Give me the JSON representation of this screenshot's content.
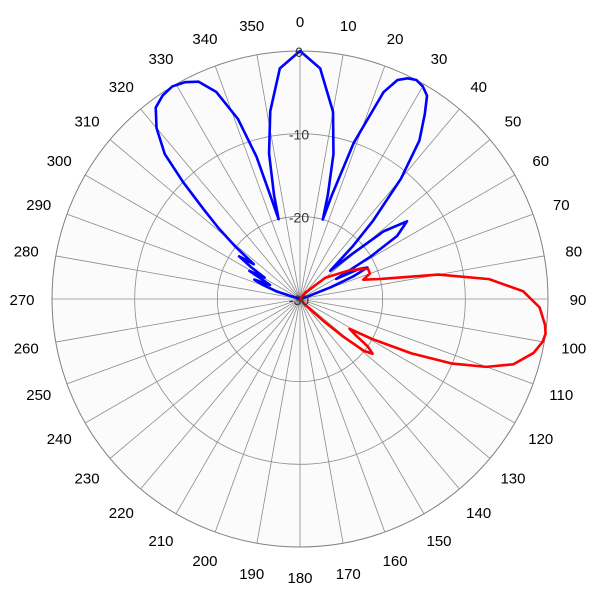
{
  "chart_data": {
    "type": "polar-line",
    "title": "",
    "angle_ticks": [
      "0",
      "10",
      "20",
      "30",
      "40",
      "50",
      "60",
      "70",
      "80",
      "90",
      "100",
      "110",
      "120",
      "130",
      "140",
      "150",
      "160",
      "170",
      "180",
      "190",
      "200",
      "210",
      "220",
      "230",
      "240",
      "250",
      "260",
      "270",
      "280",
      "290",
      "300",
      "310",
      "320",
      "330",
      "340",
      "350"
    ],
    "radial_ticks": [
      "0",
      "-10",
      "-20",
      "-30"
    ],
    "radial_range": [
      -30,
      0
    ],
    "angle_direction": "clockwise",
    "zero_angle": "top",
    "grid": true,
    "legend": "none",
    "series": [
      {
        "color": "#0000ff",
        "points": [
          [
            0,
            0
          ],
          [
            5,
            -2
          ],
          [
            10,
            -7
          ],
          [
            13,
            -12
          ],
          [
            15,
            -17
          ],
          [
            16,
            -20
          ],
          [
            17,
            -17
          ],
          [
            19,
            -10
          ],
          [
            22,
            -3
          ],
          [
            24,
            -1
          ],
          [
            26,
            -0.3
          ],
          [
            28,
            0
          ],
          [
            30,
            -0.3
          ],
          [
            32,
            -1
          ],
          [
            34,
            -3
          ],
          [
            37,
            -6
          ],
          [
            40,
            -11
          ],
          [
            43,
            -17
          ],
          [
            45,
            -21
          ],
          [
            47,
            -25
          ],
          [
            49,
            -22
          ],
          [
            51,
            -17
          ],
          [
            54,
            -14
          ],
          [
            57,
            -16
          ],
          [
            59,
            -20
          ],
          [
            61,
            -25
          ],
          [
            63,
            -22
          ],
          [
            65,
            -21
          ],
          [
            67,
            -23
          ],
          [
            69,
            -26
          ],
          [
            72,
            -29
          ],
          [
            76,
            -30
          ],
          [
            284,
            -30
          ],
          [
            288,
            -27
          ],
          [
            291,
            -25
          ],
          [
            293,
            -24
          ],
          [
            295,
            -26
          ],
          [
            297,
            -25
          ],
          [
            299,
            -23
          ],
          [
            301,
            -25
          ],
          [
            303,
            -23
          ],
          [
            305,
            -21
          ],
          [
            307,
            -23
          ],
          [
            309,
            -20
          ],
          [
            311,
            -17
          ],
          [
            313,
            -14
          ],
          [
            315,
            -10
          ],
          [
            317,
            -6
          ],
          [
            320,
            -3
          ],
          [
            323,
            -1
          ],
          [
            326,
            -0.3
          ],
          [
            329,
            0
          ],
          [
            332,
            -0.3
          ],
          [
            335,
            -1
          ],
          [
            338,
            -3
          ],
          [
            341,
            -7
          ],
          [
            343,
            -12
          ],
          [
            344,
            -17
          ],
          [
            345,
            -20
          ],
          [
            346,
            -17
          ],
          [
            348,
            -12
          ],
          [
            351,
            -7
          ],
          [
            355,
            -2
          ],
          [
            360,
            0
          ]
        ]
      },
      {
        "color": "#ff0000",
        "points": [
          [
            28,
            -30
          ],
          [
            40,
            -29
          ],
          [
            50,
            -26
          ],
          [
            60,
            -23
          ],
          [
            66,
            -21
          ],
          [
            70,
            -21
          ],
          [
            73,
            -22
          ],
          [
            76,
            -20
          ],
          [
            80,
            -13
          ],
          [
            84,
            -7
          ],
          [
            88,
            -3
          ],
          [
            92,
            -1
          ],
          [
            96,
            -0.2
          ],
          [
            98,
            0
          ],
          [
            100,
            -0.2
          ],
          [
            103,
            -1
          ],
          [
            107,
            -3
          ],
          [
            110,
            -6
          ],
          [
            113,
            -10
          ],
          [
            116,
            -15
          ],
          [
            119,
            -20
          ],
          [
            121,
            -23
          ],
          [
            123,
            -22
          ],
          [
            125,
            -20
          ],
          [
            127,
            -19
          ],
          [
            129,
            -20
          ],
          [
            131,
            -23
          ],
          [
            133,
            -26
          ],
          [
            138,
            -29
          ],
          [
            145,
            -30
          ]
        ]
      }
    ]
  }
}
